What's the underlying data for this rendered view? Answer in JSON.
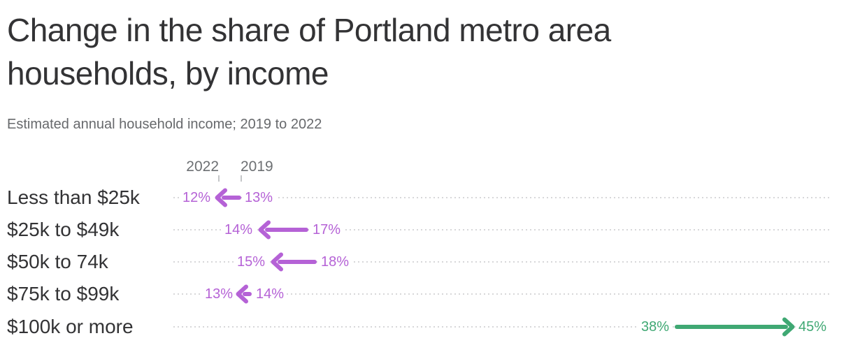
{
  "header": {
    "title_lines": [
      "Change in the share of Portland metro area",
      "households, by income"
    ],
    "subtitle": "Estimated annual household income; 2019 to 2022"
  },
  "axis": {
    "col_left_label": "2022",
    "col_right_label": "2019"
  },
  "chart_data": {
    "type": "arrow",
    "title": "Change in the share of Portland metro area households, by income",
    "subtitle": "Estimated annual household income; 2019 to 2022",
    "unit": "%",
    "categories": [
      "Less than $25k",
      "$25k to $49k",
      "$50k to 74k",
      "$75k to $99k",
      "$100k or more"
    ],
    "series": [
      {
        "name": "2022",
        "values": [
          12,
          14,
          15,
          13,
          45
        ]
      },
      {
        "name": "2019",
        "values": [
          13,
          17,
          18,
          14,
          38
        ]
      }
    ],
    "value_labels": {
      "y2022": [
        "12%",
        "14%",
        "15%",
        "13%",
        "45%"
      ],
      "y2019": [
        "13%",
        "17%",
        "18%",
        "14%",
        "38%"
      ]
    },
    "legend_position": "top",
    "grid": "dotted-row-leaders",
    "colors": {
      "decrease": "#b562d6",
      "increase": "#3fa873",
      "text": "#333335",
      "muted_text": "#67696c",
      "leader_dots": "#d7d7d9"
    }
  }
}
